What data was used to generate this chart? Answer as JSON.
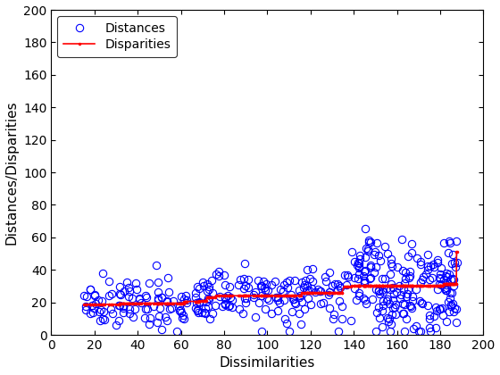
{
  "xlim": [
    0,
    200
  ],
  "ylim": [
    0,
    200
  ],
  "xlabel": "Dissimilarities",
  "ylabel": "Distances/Disparities",
  "xticks": [
    0,
    20,
    40,
    60,
    80,
    100,
    120,
    140,
    160,
    180,
    200
  ],
  "yticks": [
    0,
    20,
    40,
    60,
    80,
    100,
    120,
    140,
    160,
    180,
    200
  ],
  "distances_color": "#0000FF",
  "disparities_color": "#FF0000",
  "legend_distances": "Distances",
  "legend_disparities": "Disparities",
  "figsize": [
    5.6,
    4.2
  ],
  "dpi": 100
}
